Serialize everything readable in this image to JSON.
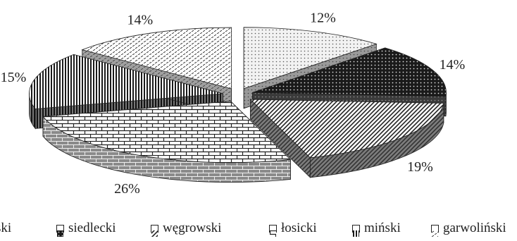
{
  "chart_data": {
    "type": "pie",
    "style": "3d-exploded",
    "slices": [
      {
        "label": "sokołowski",
        "value": 12,
        "display": "12%",
        "pattern": "dots-light"
      },
      {
        "label": "siedlecki",
        "value": 14,
        "display": "14%",
        "pattern": "dots-dark"
      },
      {
        "label": "węgrowski",
        "value": 19,
        "display": "19%",
        "pattern": "diagonal"
      },
      {
        "label": "łosicki",
        "value": 26,
        "display": "26%",
        "pattern": "brick"
      },
      {
        "label": "miński",
        "value": 15,
        "display": "15%",
        "pattern": "vertical"
      },
      {
        "label": "garwoliński",
        "value": 14,
        "display": "14%",
        "pattern": "dashes"
      }
    ],
    "legend": [
      {
        "text": "ski",
        "pattern": "dots-light"
      },
      {
        "text": "siedlecki",
        "pattern": "dots-dark"
      },
      {
        "text": "węgrowski",
        "pattern": "diagonal"
      },
      {
        "text": "łosicki",
        "pattern": "brick"
      },
      {
        "text": "miński",
        "pattern": "vertical"
      },
      {
        "text": "garwoliński",
        "pattern": "dashes"
      }
    ],
    "legend_placement": "bottom"
  }
}
